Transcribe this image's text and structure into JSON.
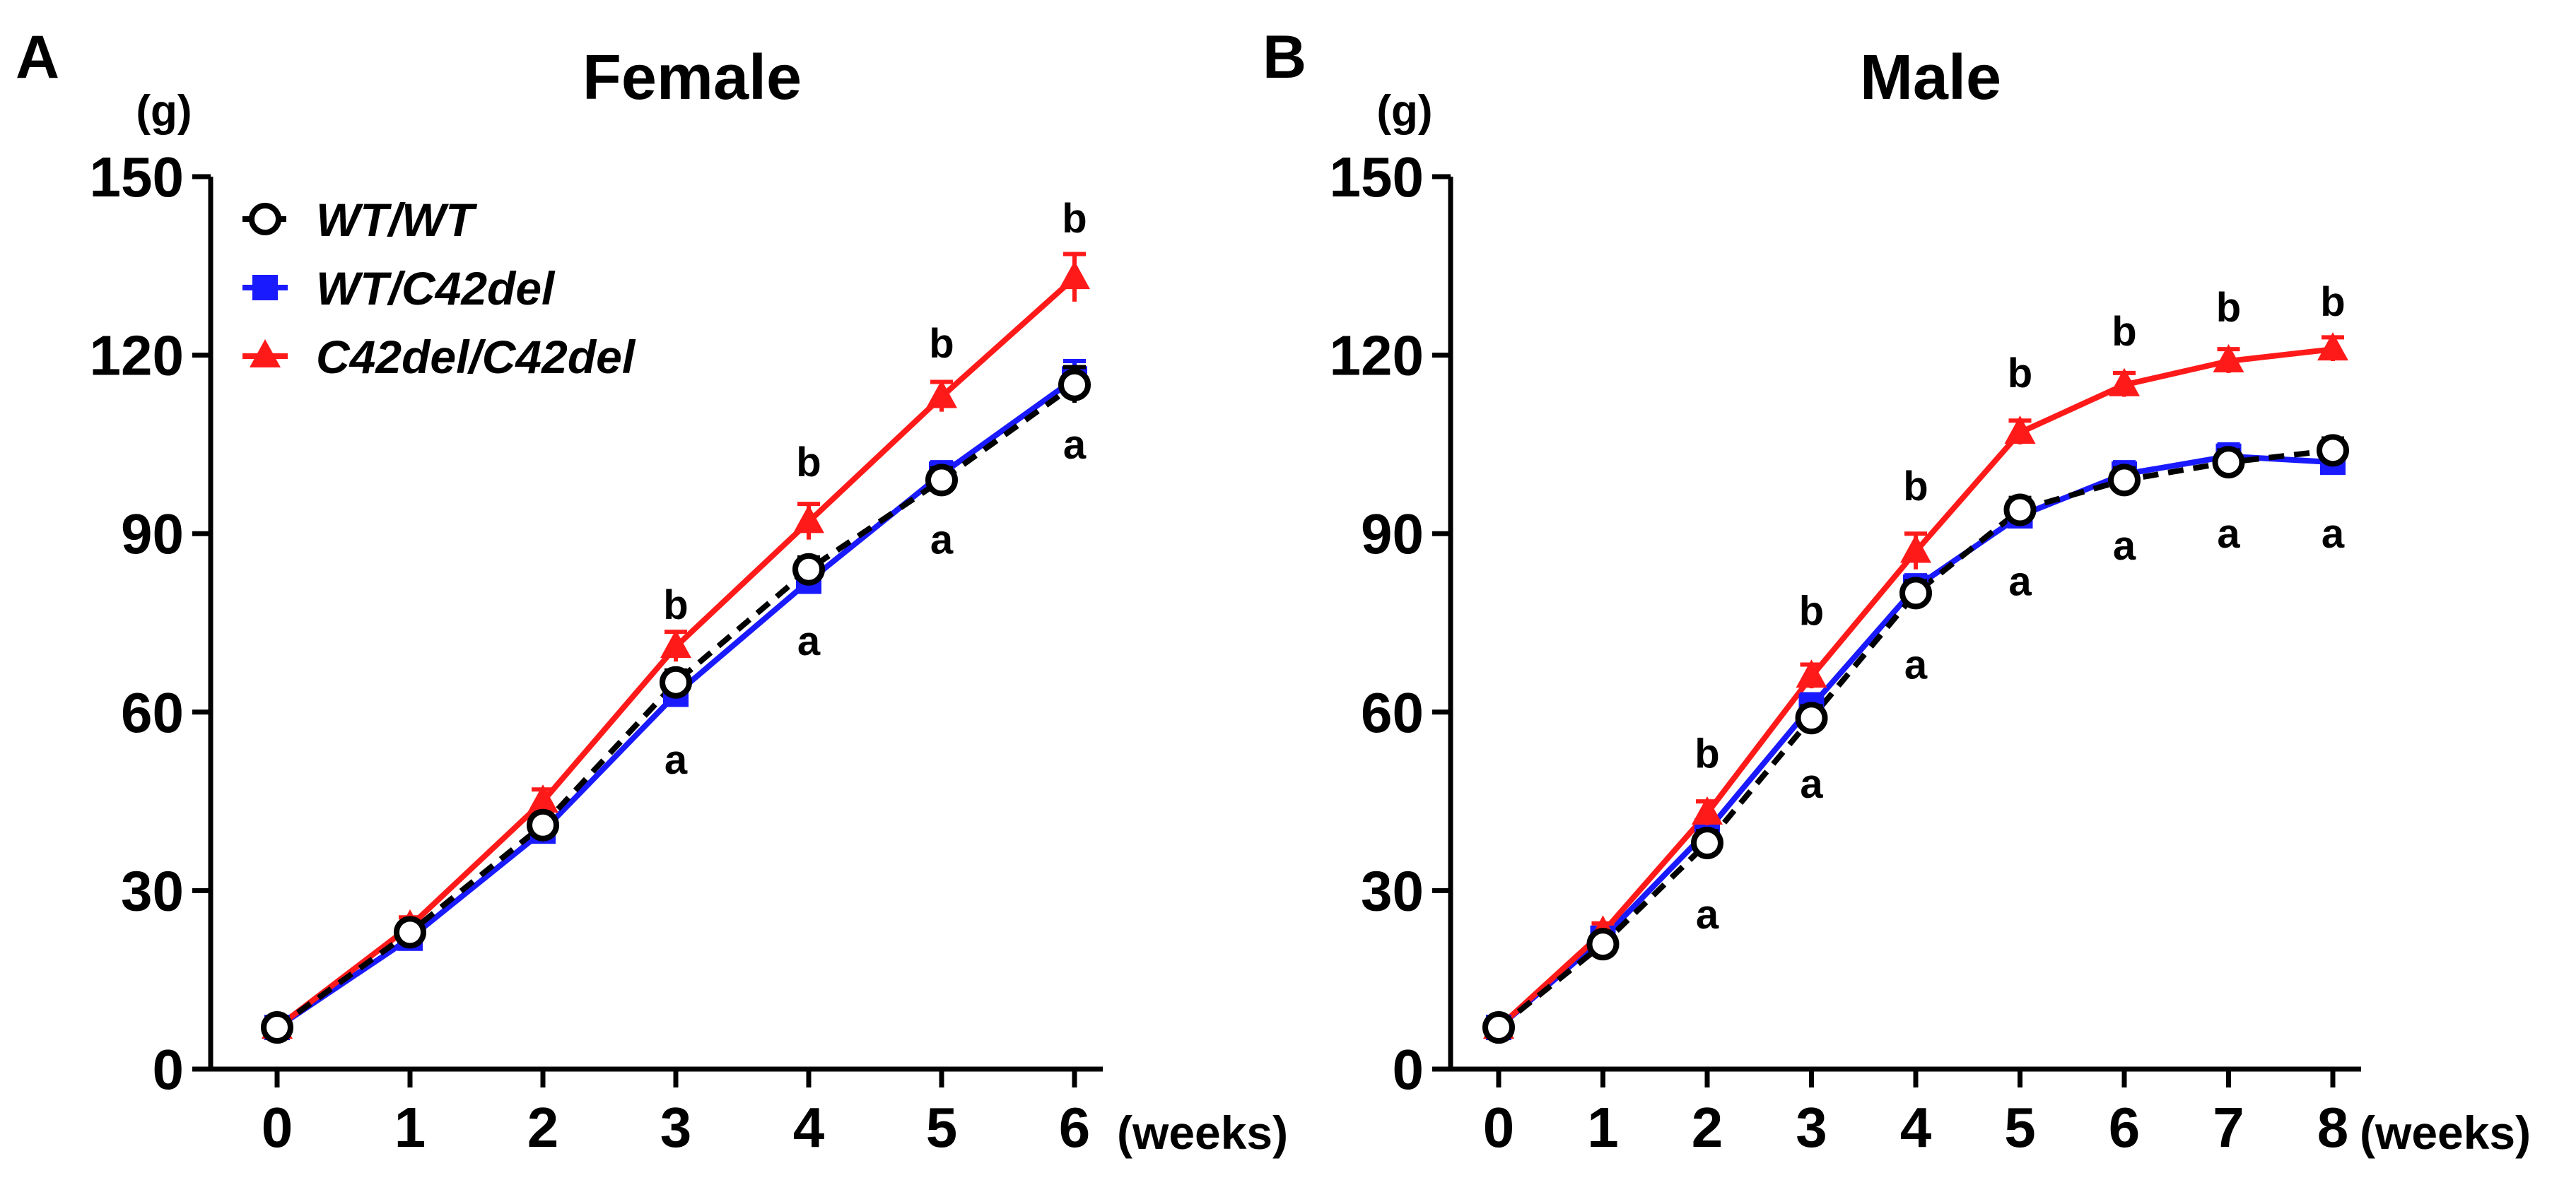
{
  "chart_data": [
    {
      "type": "line",
      "panel": "A",
      "title": "Female",
      "ylabel": "(g)",
      "xlabel": "(weeks)",
      "ylim": [
        0,
        150
      ],
      "yticks": [
        "0",
        "30",
        "60",
        "90",
        "120",
        "150"
      ],
      "x": [
        0,
        1,
        2,
        3,
        4,
        5,
        6
      ],
      "xticks": [
        "0",
        "1",
        "2",
        "3",
        "4",
        "5",
        "6"
      ],
      "legend": {
        "placement": "top-left"
      },
      "series": [
        {
          "name": "WT/WT",
          "color": "#000000",
          "marker": "open-circle",
          "dashed": true,
          "values": [
            7,
            23,
            41,
            65,
            84,
            99,
            115
          ],
          "errors": [
            1,
            1.5,
            1.5,
            2,
            2,
            2,
            3
          ]
        },
        {
          "name": "WT/C42del",
          "color": "#1a1aff",
          "marker": "square",
          "dashed": false,
          "values": [
            7,
            22,
            40,
            63,
            82,
            100,
            116
          ],
          "errors": [
            1,
            1.5,
            1.5,
            2,
            2,
            2,
            3
          ]
        },
        {
          "name": "C42del/C42del",
          "color": "#ff1a1a",
          "marker": "triangle",
          "dashed": false,
          "values": [
            7,
            24,
            45,
            71,
            92,
            113,
            133
          ],
          "errors": [
            1,
            1.5,
            2,
            2.5,
            3,
            2.5,
            4
          ]
        }
      ],
      "annotations": [
        {
          "x": 3,
          "y": 78,
          "text": "b"
        },
        {
          "x": 3,
          "y": 52,
          "text": "a"
        },
        {
          "x": 4,
          "y": 102,
          "text": "b"
        },
        {
          "x": 4,
          "y": 72,
          "text": "a"
        },
        {
          "x": 5,
          "y": 122,
          "text": "b"
        },
        {
          "x": 5,
          "y": 89,
          "text": "a"
        },
        {
          "x": 6,
          "y": 143,
          "text": "b"
        },
        {
          "x": 6,
          "y": 105,
          "text": "a"
        }
      ]
    },
    {
      "type": "line",
      "panel": "B",
      "title": "Male",
      "ylabel": "(g)",
      "xlabel": "(weeks)",
      "ylim": [
        0,
        150
      ],
      "yticks": [
        "0",
        "30",
        "60",
        "90",
        "120",
        "150"
      ],
      "x": [
        0,
        1,
        2,
        3,
        4,
        5,
        6,
        7,
        8
      ],
      "xticks": [
        "0",
        "1",
        "2",
        "3",
        "4",
        "5",
        "6",
        "7",
        "8"
      ],
      "series": [
        {
          "name": "WT/WT",
          "color": "#000000",
          "marker": "open-circle",
          "dashed": true,
          "values": [
            7,
            21,
            38,
            59,
            80,
            94,
            99,
            102,
            104
          ],
          "errors": [
            1,
            1.5,
            2,
            2,
            2,
            2,
            2,
            2,
            2
          ]
        },
        {
          "name": "WT/C42del",
          "color": "#1a1aff",
          "marker": "square",
          "dashed": false,
          "values": [
            7,
            22,
            40,
            61,
            81,
            93,
            100,
            103,
            102
          ],
          "errors": [
            1,
            1.5,
            2,
            2,
            2,
            2,
            2,
            2,
            2
          ]
        },
        {
          "name": "C42del/C42del",
          "color": "#ff1a1a",
          "marker": "triangle",
          "dashed": false,
          "values": [
            7,
            23,
            43,
            66,
            87,
            107,
            115,
            119,
            121
          ],
          "errors": [
            1,
            1.5,
            2,
            2,
            3,
            2,
            2,
            2,
            2
          ]
        }
      ],
      "annotations": [
        {
          "x": 2,
          "y": 53,
          "text": "b"
        },
        {
          "x": 2,
          "y": 26,
          "text": "a"
        },
        {
          "x": 3,
          "y": 77,
          "text": "b"
        },
        {
          "x": 3,
          "y": 48,
          "text": "a"
        },
        {
          "x": 4,
          "y": 98,
          "text": "b"
        },
        {
          "x": 4,
          "y": 68,
          "text": "a"
        },
        {
          "x": 5,
          "y": 117,
          "text": "b"
        },
        {
          "x": 5,
          "y": 82,
          "text": "a"
        },
        {
          "x": 6,
          "y": 124,
          "text": "b"
        },
        {
          "x": 6,
          "y": 88,
          "text": "a"
        },
        {
          "x": 7,
          "y": 128,
          "text": "b"
        },
        {
          "x": 7,
          "y": 90,
          "text": "a"
        },
        {
          "x": 8,
          "y": 129,
          "text": "b"
        },
        {
          "x": 8,
          "y": 90,
          "text": "a"
        }
      ]
    }
  ]
}
